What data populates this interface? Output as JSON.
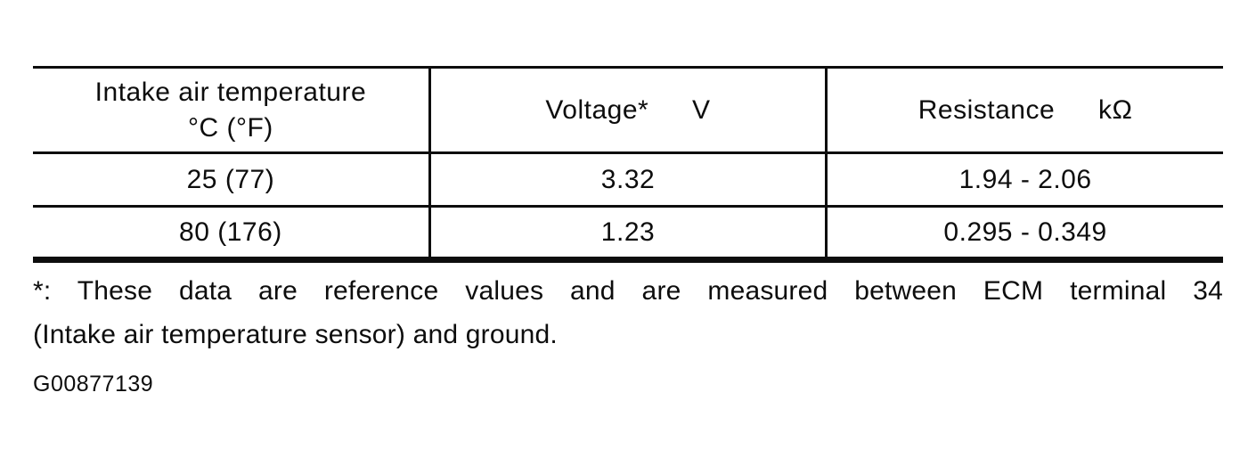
{
  "document": {
    "table": {
      "header": {
        "temperature": {
          "line1": "Intake air temperature",
          "line2": "°C (°F)"
        },
        "voltage": {
          "name": "Voltage*",
          "unit": "V"
        },
        "resistance": {
          "name": "Resistance",
          "unit": "kΩ"
        }
      },
      "rows": [
        {
          "temperature": "25 (77)",
          "voltage": "3.32",
          "resistance": "1.94 - 2.06"
        },
        {
          "temperature": "80 (176)",
          "voltage": "1.23",
          "resistance": "0.295 - 0.349"
        }
      ]
    },
    "footnote": {
      "lines": [
        "*: These data are reference values and are measured between ECM terminal 34",
        "(Intake air temperature sensor) and ground."
      ],
      "full_text": "*: These data are reference values and are measured between ECM terminal 34 (Intake air temperature sensor) and ground."
    },
    "figure_code": "G00877139"
  },
  "colors": {
    "ink": "#0d0d0d",
    "background": "#ffffff"
  }
}
